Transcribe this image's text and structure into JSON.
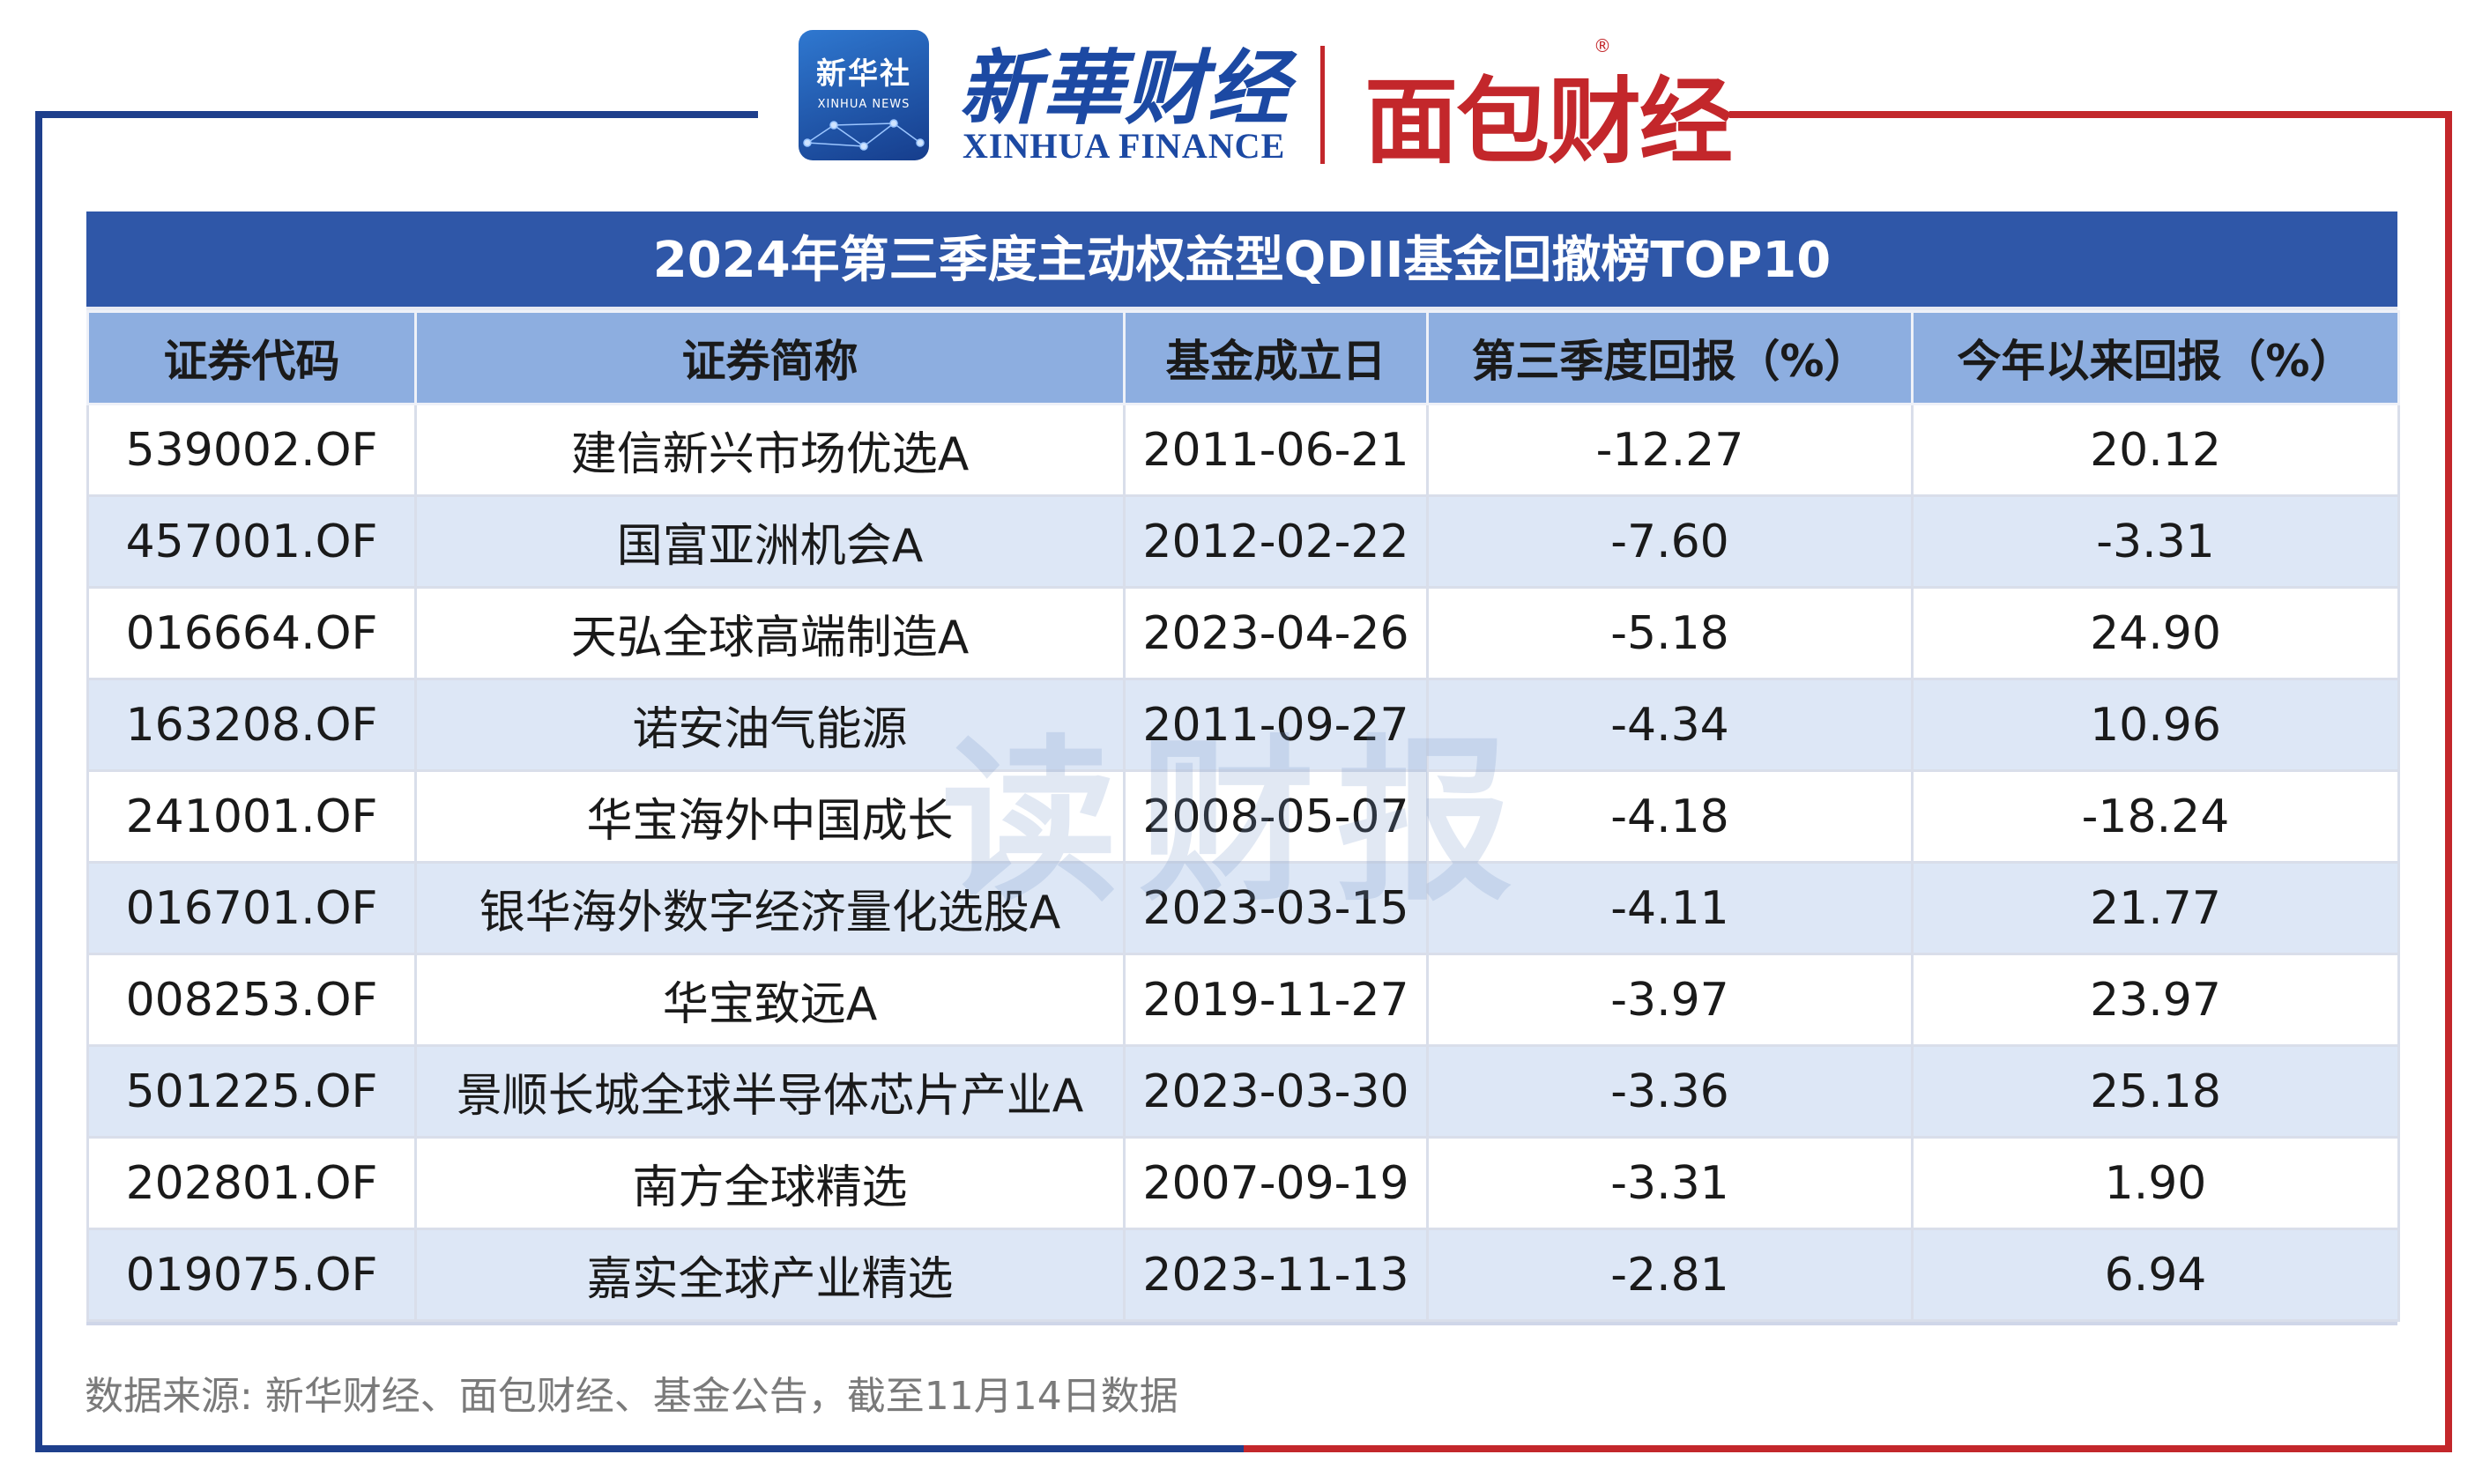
{
  "header": {
    "badge_cn": "新华社",
    "badge_en": "XINHUA NEWS",
    "xinhua_cn": "新華财经",
    "xinhua_en": "XINHUA FINANCE",
    "mianbao": "面包财经",
    "registered": "®"
  },
  "table": {
    "title": "2024年第三季度主动权益型QDII基金回撤榜TOP10",
    "columns": [
      "证券代码",
      "证券简称",
      "基金成立日",
      "第三季度回报（%）",
      "今年以来回报（%）"
    ],
    "rows": [
      [
        "539002.OF",
        "建信新兴市场优选A",
        "2011-06-21",
        "-12.27",
        "20.12"
      ],
      [
        "457001.OF",
        "国富亚洲机会A",
        "2012-02-22",
        "-7.60",
        "-3.31"
      ],
      [
        "016664.OF",
        "天弘全球高端制造A",
        "2023-04-26",
        "-5.18",
        "24.90"
      ],
      [
        "163208.OF",
        "诺安油气能源",
        "2011-09-27",
        "-4.34",
        "10.96"
      ],
      [
        "241001.OF",
        "华宝海外中国成长",
        "2008-05-07",
        "-4.18",
        "-18.24"
      ],
      [
        "016701.OF",
        "银华海外数字经济量化选股A",
        "2023-03-15",
        "-4.11",
        "21.77"
      ],
      [
        "008253.OF",
        "华宝致远A",
        "2019-11-27",
        "-3.97",
        "23.97"
      ],
      [
        "501225.OF",
        "景顺长城全球半导体芯片产业A",
        "2023-03-30",
        "-3.36",
        "25.18"
      ],
      [
        "202801.OF",
        "南方全球精选",
        "2007-09-19",
        "-3.31",
        "1.90"
      ],
      [
        "019075.OF",
        "嘉实全球产业精选",
        "2023-11-13",
        "-2.81",
        "6.94"
      ]
    ]
  },
  "watermark": "读财报",
  "source_note": "数据来源: 新华财经、面包财经、基金公告，截至11月14日数据",
  "colors": {
    "frame_left": "#1e3f8c",
    "frame_right": "#c3272b",
    "title_bg": "#2f57a8",
    "header_bg": "#8daee0",
    "row_alt_bg": "#dde7f6"
  }
}
